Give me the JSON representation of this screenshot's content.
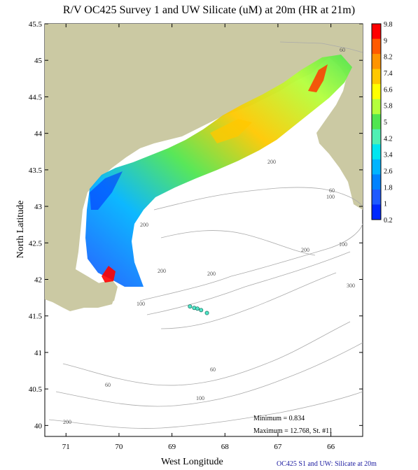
{
  "title": "R/V OC425 Survey 1 and UW Silicate (uM) at 20m (HR at 21m)",
  "x_axis": {
    "label": "West Longitude",
    "ticks": [
      "71",
      "70",
      "69",
      "68",
      "67",
      "66"
    ],
    "range": [
      71.4,
      65.4
    ]
  },
  "y_axis": {
    "label": "North Latitude",
    "ticks": [
      "45.5",
      "45",
      "44.5",
      "44",
      "43.5",
      "43",
      "42.5",
      "42",
      "41.5",
      "41",
      "40.5",
      "40"
    ],
    "range": [
      39.85,
      45.5
    ]
  },
  "colorbar": {
    "labels": [
      "9.8",
      "9",
      "8.2",
      "7.4",
      "6.6",
      "5.8",
      "5",
      "4.2",
      "3.4",
      "2.6",
      "1.8",
      "1",
      "0.2"
    ],
    "colors": [
      "#ff0000",
      "#ff5a00",
      "#ff9400",
      "#ffc800",
      "#ffff00",
      "#b4ff3c",
      "#50e650",
      "#50f0b4",
      "#00e6f0",
      "#00b4ff",
      "#0082ff",
      "#1e5aff",
      "#0028ff"
    ]
  },
  "contour_labels": [
    "60",
    "100",
    "200",
    "200",
    "200",
    "200",
    "100",
    "100",
    "60",
    "300",
    "60",
    "100",
    "200",
    "200",
    "60"
  ],
  "stats": {
    "minimum": "Minimum = 0.834",
    "maximum": "Maximum = 12.768, St. #11"
  },
  "credit": "OC425 S1 and UW: Silicate at 20m",
  "stations": [
    {
      "lon": 68.66,
      "lat": 41.63
    },
    {
      "lon": 68.58,
      "lat": 41.61
    },
    {
      "lon": 68.52,
      "lat": 41.6
    },
    {
      "lon": 68.45,
      "lat": 41.58
    },
    {
      "lon": 68.34,
      "lat": 41.54
    }
  ],
  "legend": {
    "contour_unit": "m"
  }
}
